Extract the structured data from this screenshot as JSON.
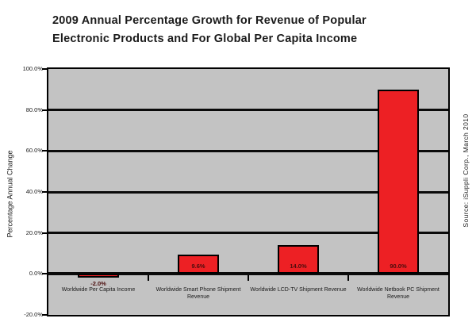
{
  "title": {
    "line1": "2009 Annual Percentage Growth for Revenue of Popular",
    "line2": "Electronic Products and For Global Per Capita Income"
  },
  "chart_data": {
    "type": "bar",
    "title": "2009 Annual Percentage Growth for Revenue of Popular Electronic Products and For Global Per Capita Income",
    "categories": [
      "Worldwide Per Capita Income",
      "Worldwide Smart Phone Shipment Revenue",
      "Worldwide LCD-TV Shipment Revenue",
      "Worldwide Netbook PC Shipment Revenue"
    ],
    "values": [
      -2.0,
      9.6,
      14.0,
      90.0
    ],
    "value_labels": [
      "-2.0%",
      "9.6%",
      "14.0%",
      "90.0%"
    ],
    "xlabel": "",
    "ylabel": "Percentage Annual Change",
    "ylim": [
      -20,
      100
    ],
    "ytick_values": [
      100,
      80,
      60,
      40,
      20,
      0,
      -20
    ],
    "ytick_labels": [
      "100.0%",
      "80.0%",
      "60.0%",
      "40.0%",
      "20.0%",
      "0.0%",
      "-20.0%"
    ],
    "grid": "horizontal",
    "legend": "none",
    "bar_color": "#ed2024",
    "bar_border_color": "#000000",
    "plot_background": "#c3c3c3",
    "source_note": "Source: iSuppli Corp., March 2010"
  }
}
